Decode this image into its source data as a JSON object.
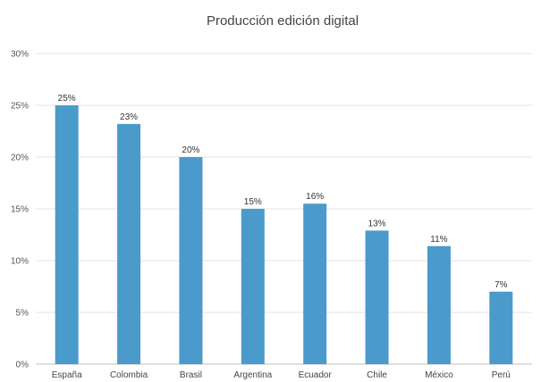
{
  "chart_data": {
    "type": "bar",
    "title": "Producción edición digital",
    "categories": [
      "España",
      "Colombia",
      "Brasil",
      "Argentina",
      "Ecuador",
      "Chile",
      "México",
      "Perú"
    ],
    "values": [
      25,
      23.2,
      20,
      15,
      15.5,
      12.9,
      11.4,
      7
    ],
    "data_labels": [
      "25%",
      "23%",
      "20%",
      "15%",
      "16%",
      "13%",
      "11%",
      "7%"
    ],
    "y_ticks": [
      "0%",
      "5%",
      "10%",
      "15%",
      "20%",
      "25%",
      "30%"
    ],
    "ylim": [
      0,
      30
    ],
    "grid": true,
    "colors": {
      "bar": "#4a9bcb"
    }
  }
}
